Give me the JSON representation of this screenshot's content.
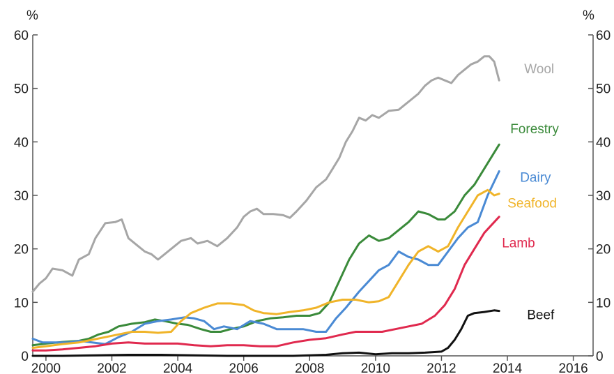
{
  "chart_data": {
    "type": "line",
    "title": "",
    "xlabel": "",
    "ylabel_left": "%",
    "ylabel_right": "%",
    "xlim": [
      1999.6,
      2016.6
    ],
    "ylim": [
      0,
      60
    ],
    "x_ticks": [
      2000,
      2002,
      2004,
      2006,
      2008,
      2010,
      2012,
      2014,
      2016
    ],
    "x_tick_labels": [
      "2000",
      "2002",
      "2004",
      "2006",
      "2008",
      "2010",
      "2012",
      "2014",
      "2016"
    ],
    "y_ticks": [
      0,
      10,
      20,
      30,
      40,
      50,
      60
    ],
    "y_tick_labels": [
      "0",
      "10",
      "20",
      "30",
      "40",
      "50",
      "60"
    ],
    "grid": false,
    "legend": "direct labels at line ends",
    "series": [
      {
        "name": "Wool",
        "color": "#a6a6a6",
        "points": [
          [
            1999.6,
            12
          ],
          [
            1999.8,
            13.5
          ],
          [
            2000.0,
            14.5
          ],
          [
            2000.2,
            16.3
          ],
          [
            2000.5,
            16
          ],
          [
            2000.8,
            15
          ],
          [
            2001.0,
            18
          ],
          [
            2001.3,
            19
          ],
          [
            2001.5,
            22
          ],
          [
            2001.8,
            24.8
          ],
          [
            2002.1,
            25
          ],
          [
            2002.3,
            25.5
          ],
          [
            2002.5,
            22
          ],
          [
            2002.8,
            20.5
          ],
          [
            2003.0,
            19.5
          ],
          [
            2003.2,
            19
          ],
          [
            2003.4,
            18
          ],
          [
            2003.6,
            19
          ],
          [
            2003.9,
            20.5
          ],
          [
            2004.1,
            21.5
          ],
          [
            2004.4,
            22
          ],
          [
            2004.6,
            21
          ],
          [
            2004.9,
            21.5
          ],
          [
            2005.2,
            20.5
          ],
          [
            2005.5,
            22
          ],
          [
            2005.8,
            24
          ],
          [
            2006.0,
            26
          ],
          [
            2006.2,
            27
          ],
          [
            2006.4,
            27.5
          ],
          [
            2006.6,
            26.5
          ],
          [
            2006.9,
            26.5
          ],
          [
            2007.2,
            26.3
          ],
          [
            2007.4,
            25.8
          ],
          [
            2007.6,
            27
          ],
          [
            2007.9,
            29
          ],
          [
            2008.2,
            31.5
          ],
          [
            2008.5,
            33
          ],
          [
            2008.7,
            35
          ],
          [
            2008.9,
            37
          ],
          [
            2009.1,
            40
          ],
          [
            2009.3,
            42
          ],
          [
            2009.5,
            44.5
          ],
          [
            2009.7,
            44
          ],
          [
            2009.9,
            45
          ],
          [
            2010.1,
            44.5
          ],
          [
            2010.4,
            45.8
          ],
          [
            2010.7,
            46
          ],
          [
            2010.9,
            47
          ],
          [
            2011.1,
            48
          ],
          [
            2011.3,
            49
          ],
          [
            2011.5,
            50.5
          ],
          [
            2011.7,
            51.5
          ],
          [
            2011.9,
            52
          ],
          [
            2012.1,
            51.5
          ],
          [
            2012.3,
            51
          ],
          [
            2012.5,
            52.5
          ],
          [
            2012.7,
            53.5
          ],
          [
            2012.9,
            54.5
          ],
          [
            2013.1,
            55
          ],
          [
            2013.3,
            56
          ],
          [
            2013.45,
            56
          ],
          [
            2013.6,
            55
          ],
          [
            2013.75,
            51.5
          ]
        ]
      },
      {
        "name": "Forestry",
        "color": "#3a8a3a",
        "points": [
          [
            1999.6,
            2
          ],
          [
            2000.0,
            2.3
          ],
          [
            2000.5,
            2.6
          ],
          [
            2001.0,
            2.8
          ],
          [
            2001.3,
            3.2
          ],
          [
            2001.6,
            4
          ],
          [
            2001.9,
            4.5
          ],
          [
            2002.2,
            5.5
          ],
          [
            2002.6,
            6
          ],
          [
            2003.0,
            6.3
          ],
          [
            2003.3,
            6.8
          ],
          [
            2003.6,
            6.5
          ],
          [
            2004.0,
            6
          ],
          [
            2004.3,
            5.8
          ],
          [
            2004.7,
            5
          ],
          [
            2005.0,
            4.5
          ],
          [
            2005.3,
            4.5
          ],
          [
            2005.6,
            5
          ],
          [
            2006.0,
            5.5
          ],
          [
            2006.4,
            6.5
          ],
          [
            2006.8,
            7
          ],
          [
            2007.2,
            7.2
          ],
          [
            2007.6,
            7.5
          ],
          [
            2008.0,
            7.5
          ],
          [
            2008.3,
            8
          ],
          [
            2008.6,
            10
          ],
          [
            2008.9,
            14
          ],
          [
            2009.2,
            18
          ],
          [
            2009.5,
            21
          ],
          [
            2009.8,
            22.5
          ],
          [
            2010.1,
            21.5
          ],
          [
            2010.4,
            22
          ],
          [
            2010.7,
            23.5
          ],
          [
            2011.0,
            25
          ],
          [
            2011.3,
            27
          ],
          [
            2011.6,
            26.5
          ],
          [
            2011.9,
            25.5
          ],
          [
            2012.1,
            25.5
          ],
          [
            2012.4,
            27
          ],
          [
            2012.7,
            30
          ],
          [
            2013.0,
            32
          ],
          [
            2013.3,
            35
          ],
          [
            2013.6,
            38
          ],
          [
            2013.75,
            39.5
          ]
        ]
      },
      {
        "name": "Dairy",
        "color": "#4a8ad4",
        "points": [
          [
            1999.6,
            3.2
          ],
          [
            1999.9,
            2.5
          ],
          [
            2000.3,
            2.5
          ],
          [
            2000.7,
            2.5
          ],
          [
            2001.0,
            2.8
          ],
          [
            2001.4,
            2.5
          ],
          [
            2001.8,
            2.2
          ],
          [
            2002.2,
            3.5
          ],
          [
            2002.6,
            4.5
          ],
          [
            2003.0,
            6
          ],
          [
            2003.4,
            6.5
          ],
          [
            2003.8,
            6.8
          ],
          [
            2004.2,
            7.2
          ],
          [
            2004.5,
            7
          ],
          [
            2004.8,
            6.5
          ],
          [
            2005.1,
            5
          ],
          [
            2005.4,
            5.5
          ],
          [
            2005.8,
            5
          ],
          [
            2006.2,
            6.5
          ],
          [
            2006.6,
            6
          ],
          [
            2007.0,
            5
          ],
          [
            2007.4,
            5
          ],
          [
            2007.8,
            5
          ],
          [
            2008.2,
            4.5
          ],
          [
            2008.5,
            4.5
          ],
          [
            2008.8,
            7
          ],
          [
            2009.1,
            9
          ],
          [
            2009.5,
            12
          ],
          [
            2009.8,
            14
          ],
          [
            2010.1,
            16
          ],
          [
            2010.4,
            17
          ],
          [
            2010.7,
            19.5
          ],
          [
            2011.0,
            18.5
          ],
          [
            2011.3,
            18
          ],
          [
            2011.6,
            17
          ],
          [
            2011.9,
            17
          ],
          [
            2012.2,
            19.5
          ],
          [
            2012.5,
            22
          ],
          [
            2012.8,
            24
          ],
          [
            2013.1,
            25
          ],
          [
            2013.4,
            30
          ],
          [
            2013.75,
            34.5
          ]
        ]
      },
      {
        "name": "Seafood",
        "color": "#f0b429",
        "points": [
          [
            1999.6,
            1.5
          ],
          [
            2000.0,
            1.8
          ],
          [
            2000.5,
            2.2
          ],
          [
            2001.0,
            2.5
          ],
          [
            2001.4,
            3
          ],
          [
            2001.8,
            3.5
          ],
          [
            2002.2,
            4
          ],
          [
            2002.6,
            4.5
          ],
          [
            2003.0,
            4.5
          ],
          [
            2003.4,
            4.3
          ],
          [
            2003.8,
            4.5
          ],
          [
            2004.1,
            6.5
          ],
          [
            2004.4,
            8
          ],
          [
            2004.8,
            9
          ],
          [
            2005.2,
            9.8
          ],
          [
            2005.6,
            9.8
          ],
          [
            2006.0,
            9.5
          ],
          [
            2006.3,
            8.5
          ],
          [
            2006.6,
            8
          ],
          [
            2007.0,
            7.8
          ],
          [
            2007.4,
            8.2
          ],
          [
            2007.8,
            8.5
          ],
          [
            2008.2,
            9
          ],
          [
            2008.6,
            10
          ],
          [
            2009.0,
            10.5
          ],
          [
            2009.4,
            10.5
          ],
          [
            2009.8,
            10
          ],
          [
            2010.1,
            10.2
          ],
          [
            2010.4,
            11
          ],
          [
            2010.7,
            14
          ],
          [
            2011.0,
            17
          ],
          [
            2011.3,
            19.5
          ],
          [
            2011.6,
            20.5
          ],
          [
            2011.9,
            19.5
          ],
          [
            2012.2,
            20.5
          ],
          [
            2012.5,
            24
          ],
          [
            2012.8,
            27
          ],
          [
            2013.1,
            30
          ],
          [
            2013.4,
            31
          ],
          [
            2013.6,
            30
          ],
          [
            2013.75,
            30.3
          ]
        ]
      },
      {
        "name": "Lamb",
        "color": "#e0294e",
        "points": [
          [
            1999.6,
            1
          ],
          [
            2000.0,
            1
          ],
          [
            2000.5,
            1.2
          ],
          [
            2001.0,
            1.5
          ],
          [
            2001.5,
            1.8
          ],
          [
            2002.0,
            2.3
          ],
          [
            2002.5,
            2.5
          ],
          [
            2003.0,
            2.3
          ],
          [
            2003.5,
            2.3
          ],
          [
            2004.0,
            2.3
          ],
          [
            2004.5,
            2
          ],
          [
            2005.0,
            1.8
          ],
          [
            2005.5,
            2
          ],
          [
            2006.0,
            2
          ],
          [
            2006.5,
            1.8
          ],
          [
            2007.0,
            1.8
          ],
          [
            2007.5,
            2.5
          ],
          [
            2008.0,
            3
          ],
          [
            2008.5,
            3.3
          ],
          [
            2009.0,
            4
          ],
          [
            2009.4,
            4.5
          ],
          [
            2009.8,
            4.5
          ],
          [
            2010.2,
            4.5
          ],
          [
            2010.6,
            5
          ],
          [
            2011.0,
            5.5
          ],
          [
            2011.4,
            6
          ],
          [
            2011.8,
            7.5
          ],
          [
            2012.1,
            9.5
          ],
          [
            2012.4,
            12.5
          ],
          [
            2012.7,
            17
          ],
          [
            2013.0,
            20
          ],
          [
            2013.3,
            23
          ],
          [
            2013.75,
            26
          ]
        ]
      },
      {
        "name": "Beef",
        "color": "#111111",
        "points": [
          [
            1999.6,
            0
          ],
          [
            2000.5,
            0
          ],
          [
            2001.5,
            0.1
          ],
          [
            2002.5,
            0.2
          ],
          [
            2003.5,
            0.2
          ],
          [
            2004.5,
            0.1
          ],
          [
            2005.5,
            0
          ],
          [
            2006.5,
            0
          ],
          [
            2007.5,
            0
          ],
          [
            2008.5,
            0.2
          ],
          [
            2009.0,
            0.5
          ],
          [
            2009.5,
            0.6
          ],
          [
            2010.0,
            0.3
          ],
          [
            2010.5,
            0.5
          ],
          [
            2011.0,
            0.5
          ],
          [
            2011.5,
            0.6
          ],
          [
            2012.0,
            0.8
          ],
          [
            2012.2,
            1.5
          ],
          [
            2012.4,
            3
          ],
          [
            2012.6,
            5
          ],
          [
            2012.8,
            7.5
          ],
          [
            2013.0,
            8
          ],
          [
            2013.3,
            8.2
          ],
          [
            2013.6,
            8.5
          ],
          [
            2013.75,
            8.4
          ]
        ]
      }
    ]
  }
}
